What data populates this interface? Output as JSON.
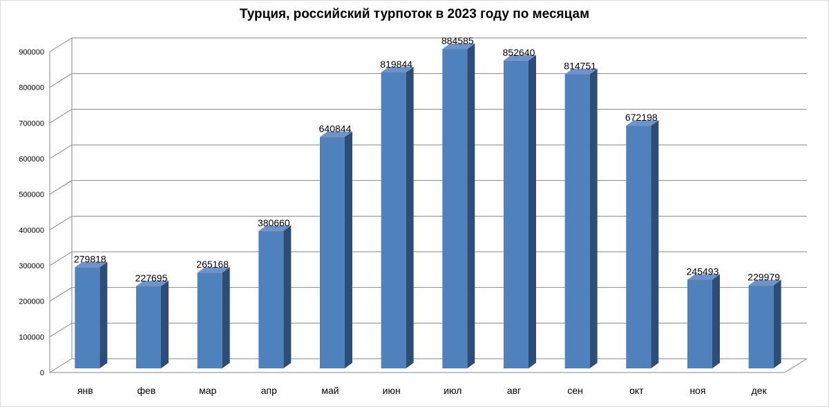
{
  "chart_data": {
    "type": "bar",
    "title": "Турция, российский турпоток в 2023 году по месяцам",
    "categories": [
      "янв",
      "фев",
      "мар",
      "апр",
      "май",
      "июн",
      "июл",
      "авг",
      "сен",
      "окт",
      "ноя",
      "дек"
    ],
    "values": [
      279818,
      227695,
      265168,
      380660,
      640844,
      819844,
      884585,
      852640,
      814751,
      672198,
      245493,
      229979
    ],
    "data_labels": [
      "279818",
      "227695",
      "265168",
      "380660",
      "640844",
      "819844",
      "884585",
      "852640",
      "814751",
      "672198",
      "245493",
      "229979"
    ],
    "y_ticks": [
      "0",
      "100000",
      "200000",
      "300000",
      "400000",
      "500000",
      "600000",
      "700000",
      "800000",
      "900000"
    ],
    "ylim": [
      0,
      900000
    ],
    "grid": true,
    "legend": "none",
    "style": "3d-column",
    "colors": {
      "bar_front": "#4f81bd",
      "bar_side": "#2c4d75",
      "bar_top": "#6f93c9",
      "grid": "#868686"
    }
  }
}
